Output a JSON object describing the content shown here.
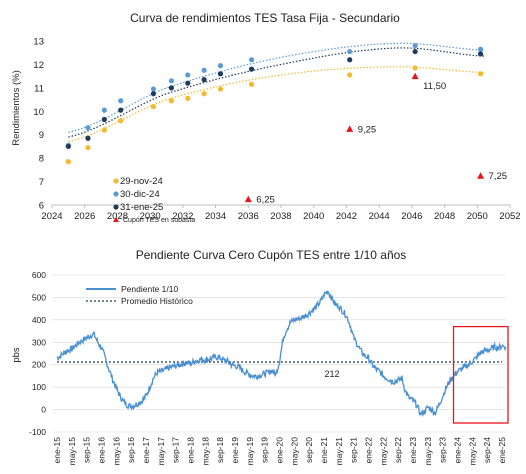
{
  "colors": {
    "nov24": "#f5b82e",
    "dic24": "#5b9bd5",
    "ene25": "#1f3b5c",
    "cupon": "#e8151b",
    "pendiente": "#4a90d0",
    "promedio": "#1f3b5c",
    "grid": "#d9d9d9",
    "highlight": "#e8151b"
  },
  "chart_data": [
    {
      "type": "scatter",
      "title": "Curva de rendimientos TES Tasa Fija - Secundario",
      "ylabel": "Rendimientos (%)",
      "xlabel": "",
      "xlim": [
        2024,
        2052
      ],
      "ylim": [
        6,
        13
      ],
      "x_ticks": [
        2024,
        2026,
        2028,
        2030,
        2032,
        2034,
        2036,
        2038,
        2040,
        2042,
        2044,
        2046,
        2048,
        2050,
        2052
      ],
      "y_ticks": [
        6,
        7,
        8,
        9,
        10,
        11,
        12,
        13
      ],
      "grid": false,
      "legend_position": "bottom-left",
      "series": [
        {
          "name": "29-nov-24",
          "color_key": "nov24",
          "points": [
            [
              2025.0,
              7.85
            ],
            [
              2026.2,
              8.45
            ],
            [
              2027.2,
              9.2
            ],
            [
              2028.2,
              9.6
            ],
            [
              2030.2,
              10.2
            ],
            [
              2031.3,
              10.45
            ],
            [
              2032.3,
              10.55
            ],
            [
              2033.3,
              10.75
            ],
            [
              2034.3,
              10.95
            ],
            [
              2036.2,
              11.15
            ],
            [
              2042.2,
              11.55
            ],
            [
              2046.2,
              11.85
            ],
            [
              2050.2,
              11.6
            ]
          ],
          "trend": [
            8.7,
            10.5,
            11.55,
            11.9,
            11.65
          ]
        },
        {
          "name": "30-dic-24",
          "color_key": "dic24",
          "points": [
            [
              2025.0,
              8.55
            ],
            [
              2026.2,
              9.3
            ],
            [
              2027.2,
              10.05
            ],
            [
              2028.2,
              10.45
            ],
            [
              2030.2,
              10.95
            ],
            [
              2031.3,
              11.3
            ],
            [
              2032.3,
              11.55
            ],
            [
              2033.3,
              11.75
            ],
            [
              2034.3,
              11.95
            ],
            [
              2036.2,
              12.2
            ],
            [
              2042.2,
              12.55
            ],
            [
              2046.2,
              12.8
            ],
            [
              2050.2,
              12.65
            ]
          ],
          "trend": [
            9.1,
            11.0,
            12.3,
            12.9,
            12.6
          ]
        },
        {
          "name": "31-ene-25",
          "color_key": "ene25",
          "points": [
            [
              2025.0,
              8.5
            ],
            [
              2026.2,
              8.85
            ],
            [
              2027.2,
              9.65
            ],
            [
              2028.2,
              10.05
            ],
            [
              2030.2,
              10.75
            ],
            [
              2031.3,
              11.0
            ],
            [
              2032.3,
              11.2
            ],
            [
              2033.3,
              11.35
            ],
            [
              2034.3,
              11.6
            ],
            [
              2036.2,
              11.8
            ],
            [
              2042.2,
              12.2
            ],
            [
              2046.2,
              12.55
            ],
            [
              2050.2,
              12.45
            ]
          ],
          "trend": [
            8.9,
            10.75,
            12.0,
            12.7,
            12.35
          ]
        },
        {
          "name": "Cupón TES en subasta",
          "color_key": "cupon",
          "marker": "triangle",
          "points": [
            [
              2036.0,
              6.25
            ],
            [
              2042.2,
              9.25
            ],
            [
              2046.2,
              11.5
            ],
            [
              2050.2,
              7.25
            ]
          ],
          "labels": [
            "6,25",
            "9,25",
            "11,50",
            "7,25"
          ]
        }
      ]
    },
    {
      "type": "line",
      "title": "Pendiente Curva Cero Cupón TES entre 1/10 años",
      "ylabel": "pbs",
      "xlabel": "",
      "ylim": [
        -100,
        600
      ],
      "y_ticks": [
        -100,
        0,
        100,
        200,
        300,
        400,
        500,
        600
      ],
      "x_tick_labels": [
        "ene-15",
        "may-15",
        "sep-15",
        "ene-16",
        "may-16",
        "sep-16",
        "ene-17",
        "may-17",
        "sep-17",
        "ene-18",
        "may-18",
        "sep-18",
        "ene-19",
        "may-19",
        "sep-19",
        "ene-20",
        "may-20",
        "sep-20",
        "ene-21",
        "may-21",
        "sep-21",
        "ene-22",
        "may-22",
        "sep-22",
        "ene-23",
        "may-23",
        "sep-23",
        "ene-24",
        "may-24",
        "sep-24",
        "ene-25"
      ],
      "legend_position": "top-left",
      "series": [
        {
          "name": "Pendiente 1/10",
          "color_key": "pendiente",
          "monthly_start": "ene-15",
          "values": [
            230,
            240,
            255,
            265,
            270,
            285,
            300,
            310,
            320,
            330,
            335,
            300,
            275,
            230,
            180,
            135,
            95,
            60,
            35,
            20,
            15,
            20,
            30,
            40,
            60,
            100,
            140,
            165,
            170,
            175,
            185,
            190,
            195,
            200,
            205,
            210,
            205,
            215,
            220,
            225,
            220,
            225,
            230,
            235,
            230,
            220,
            215,
            200,
            195,
            190,
            175,
            165,
            155,
            150,
            150,
            155,
            160,
            165,
            175,
            155,
            215,
            320,
            360,
            390,
            400,
            405,
            410,
            420,
            430,
            445,
            460,
            480,
            510,
            530,
            500,
            470,
            460,
            440,
            420,
            380,
            320,
            290,
            260,
            240,
            230,
            200,
            180,
            170,
            150,
            140,
            130,
            125,
            130,
            140,
            80,
            50,
            40,
            20,
            -20,
            -10,
            10,
            0,
            -15,
            20,
            60,
            100,
            130,
            150,
            170,
            180,
            190,
            200,
            215,
            230,
            250,
            260,
            265,
            270,
            280,
            275,
            285,
            280
          ]
        },
        {
          "name": "Promedio Histórico",
          "color_key": "promedio",
          "constant": 212,
          "label": "212"
        }
      ],
      "highlight_range": [
        "ene-24",
        "ene-25"
      ]
    }
  ]
}
